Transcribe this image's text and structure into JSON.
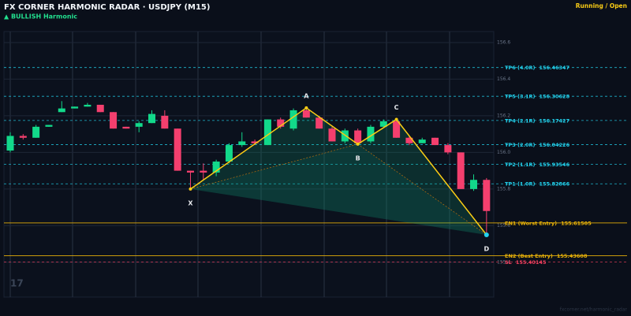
{
  "chart_data": {
    "type": "candlestick",
    "title": "FX CORNER HARMONIC RADAR  ·  USDJPY (M15)",
    "subtitle": "▲ BULLISH  Harmonic",
    "status": "Running / Open",
    "watermark": "17",
    "footer": "fxcorner.net/harmonic_radar",
    "up_color": "#12d98a",
    "down_color": "#f43f6e",
    "ylim": [
      155.21,
      156.66
    ],
    "yticks": [
      155.4,
      155.6,
      155.8,
      {
        "value": 156,
        "label": "156.0"
      },
      156.2,
      156.4,
      156.6
    ],
    "categories": [
      null,
      null,
      null,
      null,
      null,
      null,
      null,
      null,
      null,
      null,
      null,
      null,
      null,
      null,
      null,
      null,
      null,
      null,
      null,
      null,
      null,
      null,
      null,
      null,
      null,
      null,
      null,
      null,
      null,
      null,
      null,
      null,
      null,
      null,
      null,
      null,
      null,
      null
    ],
    "open": [
      156.01,
      156.09,
      156.08,
      156.14,
      156.22,
      156.24,
      156.25,
      156.26,
      156.22,
      156.14,
      156.14,
      156.16,
      156.2,
      156.13,
      155.9,
      155.9,
      155.89,
      155.95,
      156.04,
      156.06,
      156.04,
      156.18,
      156.13,
      156.23,
      156.19,
      156.13,
      156.06,
      156.12,
      156.06,
      156.14,
      156.17,
      156.08,
      156.05,
      156.08,
      156.04,
      156.0,
      155.8,
      155.85
    ],
    "high": [
      156.11,
      156.1,
      156.15,
      156.15,
      156.28,
      156.25,
      156.27,
      156.26,
      156.22,
      156.14,
      156.17,
      156.23,
      156.23,
      156.13,
      155.9,
      155.94,
      155.96,
      156.05,
      156.11,
      156.07,
      156.18,
      156.19,
      156.24,
      156.24,
      156.2,
      156.14,
      156.13,
      156.13,
      156.15,
      156.18,
      156.18,
      156.09,
      156.08,
      156.08,
      156.05,
      156.0,
      155.88,
      155.86
    ],
    "low": [
      156.0,
      156.07,
      156.08,
      156.14,
      156.22,
      156.24,
      156.25,
      156.22,
      156.13,
      156.13,
      156.11,
      156.16,
      156.13,
      155.9,
      155.8,
      155.85,
      155.87,
      155.94,
      156.03,
      156.04,
      156.04,
      156.13,
      156.12,
      156.19,
      156.13,
      156.06,
      156.05,
      156.04,
      156.05,
      156.14,
      156.08,
      156.04,
      156.05,
      156.04,
      155.99,
      155.8,
      155.79,
      155.55
    ],
    "close": [
      156.09,
      156.08,
      156.14,
      156.15,
      156.24,
      156.25,
      156.26,
      156.22,
      156.13,
      156.13,
      156.16,
      156.21,
      156.13,
      155.9,
      155.89,
      155.89,
      155.95,
      156.04,
      156.06,
      156.05,
      156.18,
      156.14,
      156.23,
      156.19,
      156.13,
      156.06,
      156.12,
      156.05,
      156.14,
      156.17,
      156.08,
      156.05,
      156.07,
      156.04,
      156.0,
      155.8,
      155.85,
      155.68
    ],
    "pattern_color": "#facc15",
    "pattern": [
      {
        "label": "X",
        "index": 14,
        "value": 155.8
      },
      {
        "label": "A",
        "index": 23,
        "value": 156.243
      },
      {
        "label": "B",
        "index": 27,
        "value": 156.045
      },
      {
        "label": "C",
        "index": 30,
        "value": 156.18
      },
      {
        "label": "D",
        "index": 37,
        "value": 155.55
      }
    ],
    "levels": [
      {
        "label": "TP6 (4.0R)",
        "value": 156.46347,
        "color": "#22d3ee",
        "style": "dashed"
      },
      {
        "label": "TP5 (3.1R)",
        "value": 156.30628,
        "color": "#22d3ee",
        "style": "dashed"
      },
      {
        "label": "TP4 (2.1R)",
        "value": 156.17427,
        "color": "#22d3ee",
        "style": "dashed"
      },
      {
        "label": "TP3 (2.0R)",
        "value": 156.04226,
        "color": "#22d3ee",
        "style": "dashed"
      },
      {
        "label": "TP2 (1.1R)",
        "value": 155.93546,
        "color": "#22d3ee",
        "style": "dashed"
      },
      {
        "label": "TP1 (1.0R)",
        "value": 155.82866,
        "color": "#22d3ee",
        "style": "dashed"
      },
      {
        "label": "EN1 (Worst Entry)",
        "value": 155.61505,
        "color": "#eab308",
        "style": "solid"
      },
      {
        "label": "EN2 (Best Entry)",
        "value": 155.43608,
        "color": "#eab308",
        "style": "solid"
      },
      {
        "label": "SL",
        "value": 155.40145,
        "color": "#f43f5e",
        "style": "dashed"
      }
    ]
  }
}
